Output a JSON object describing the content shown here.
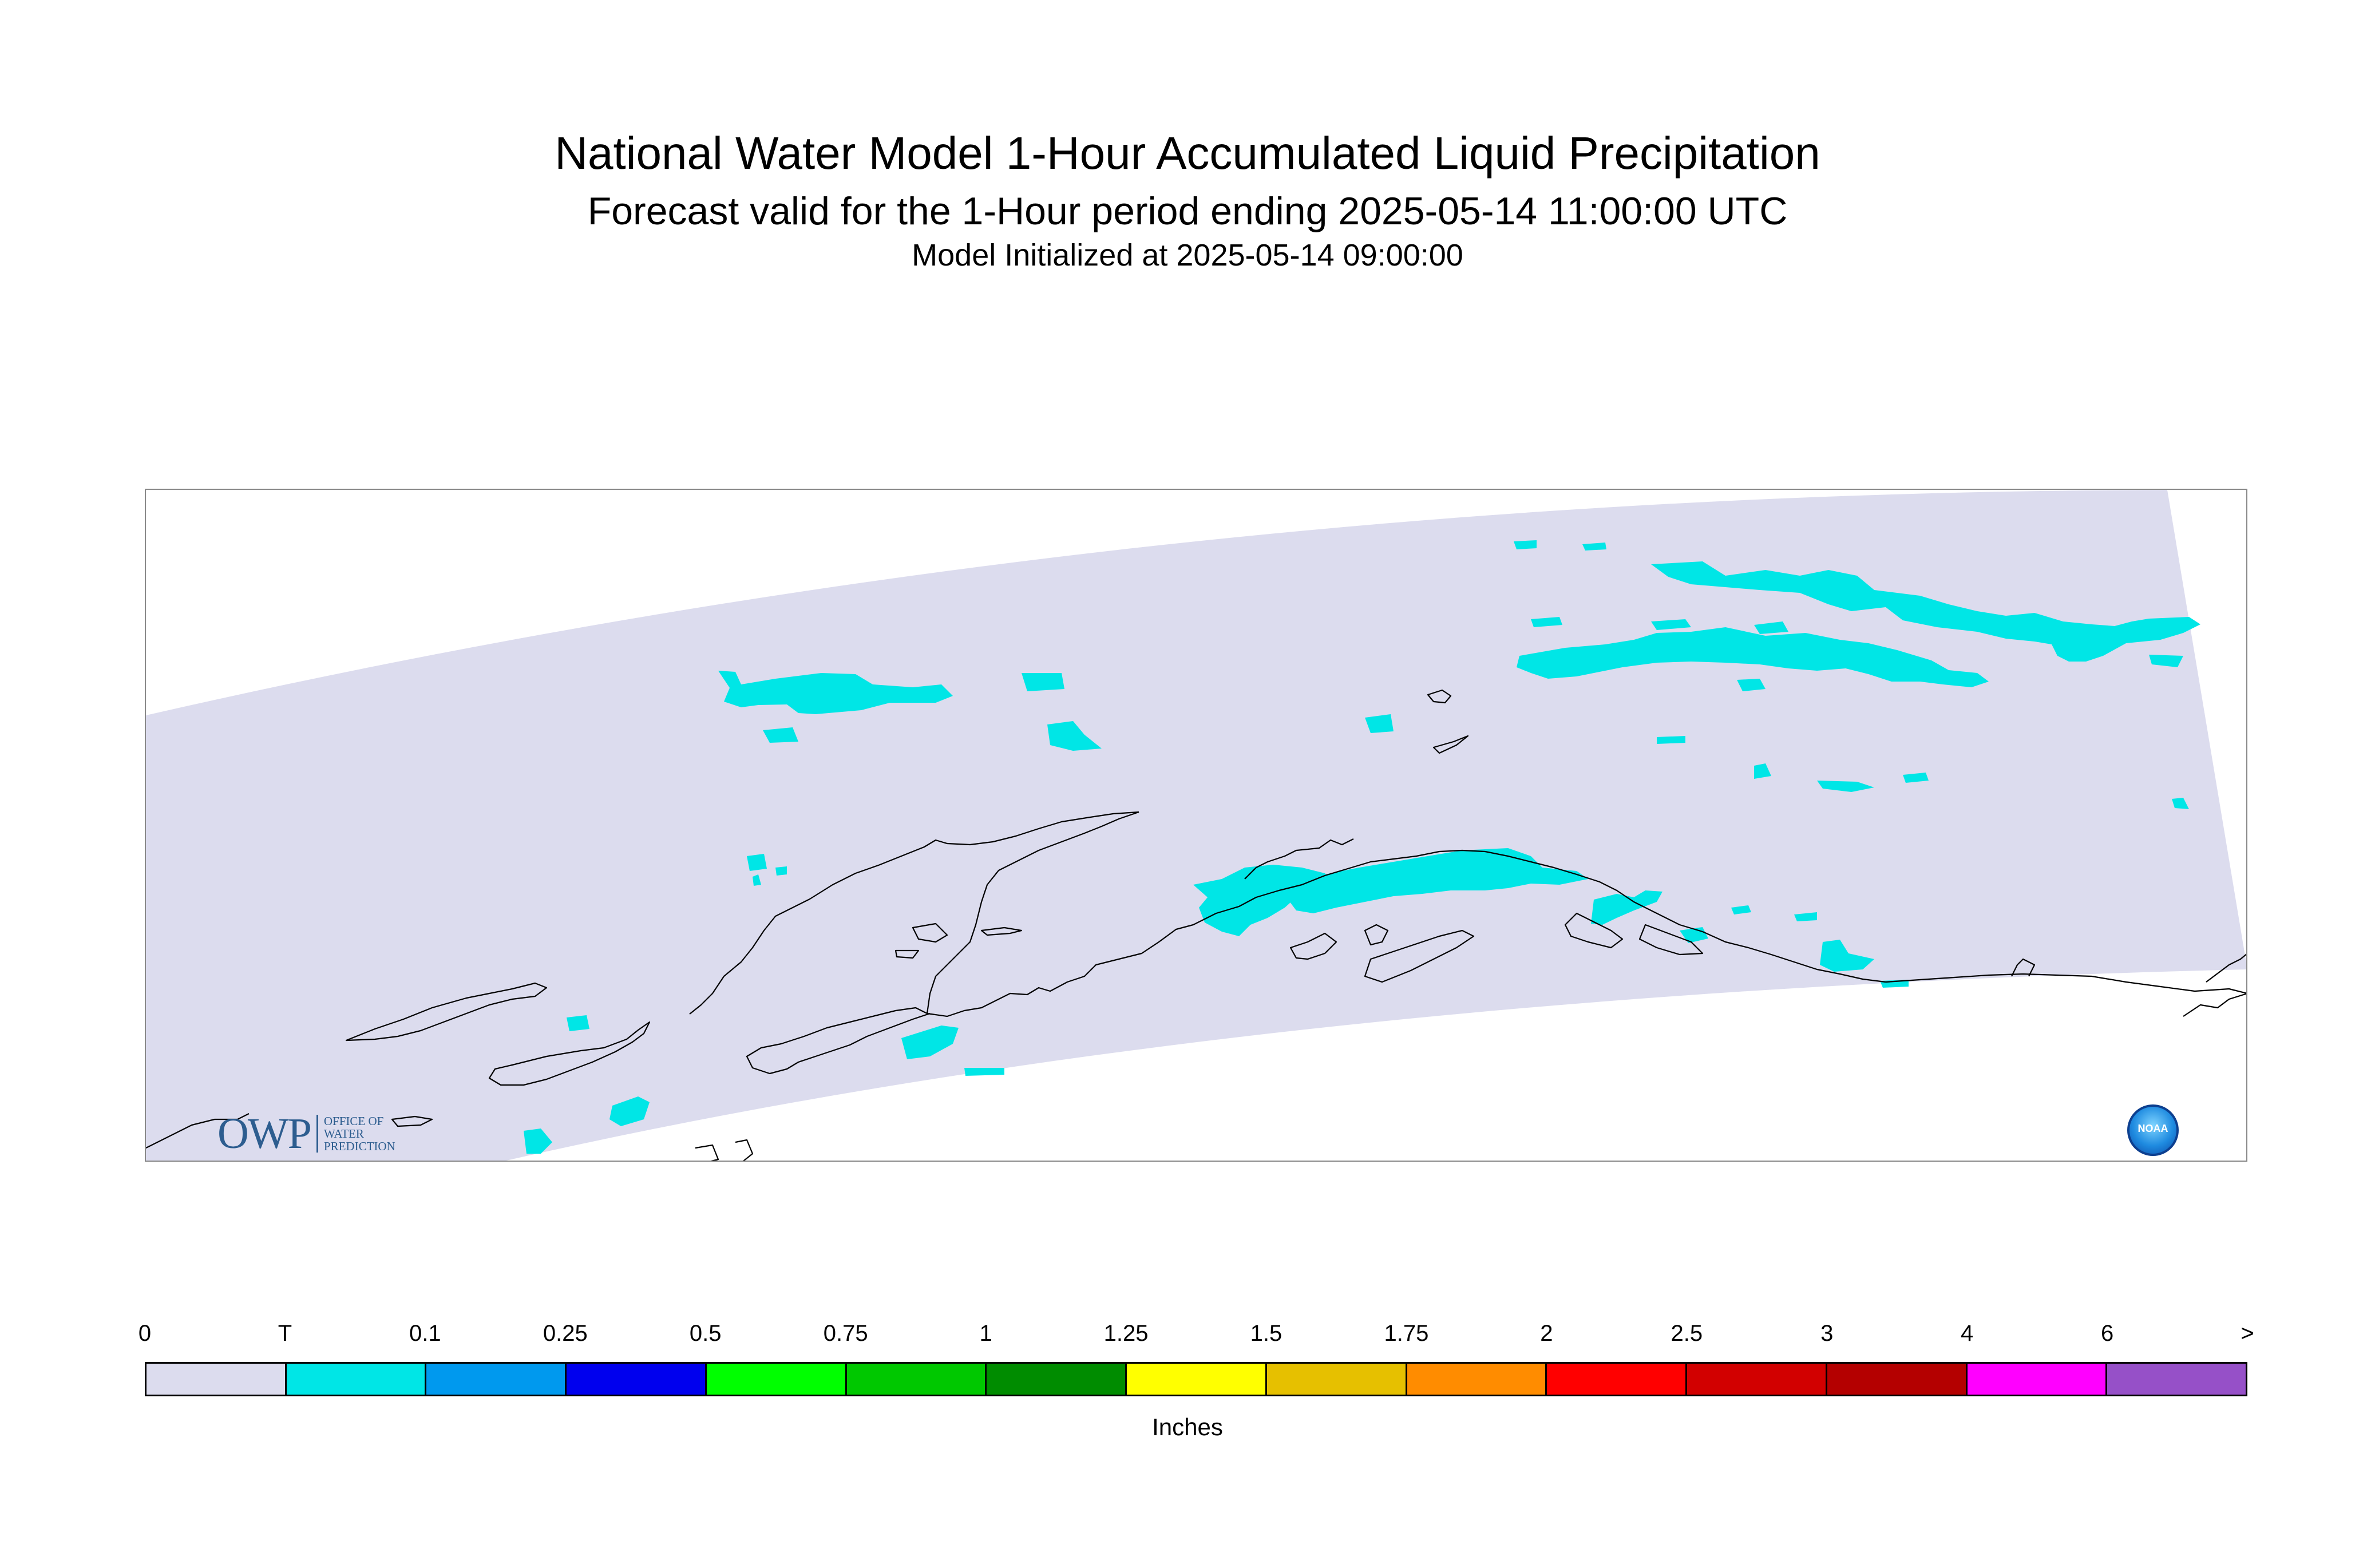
{
  "title": "National Water Model 1-Hour Accumulated Liquid Precipitation",
  "subtitle": "Forecast valid for the 1-Hour period ending 2025-05-14 11:00:00 UTC",
  "init_line": "Model Initialized at 2025-05-14 09:00:00",
  "map": {
    "region": "Alaska",
    "domain_fill_color": "#dcdcee",
    "precip_color": "#00e6e6",
    "coastline_color": "#000000"
  },
  "logos": {
    "owp": {
      "letters": "OWP",
      "line1": "Office of",
      "line2": "Water",
      "line3": "Prediction"
    },
    "noaa": {
      "text": "NOAA"
    }
  },
  "colorbar": {
    "tick_labels": [
      "0",
      "T",
      "0.1",
      "0.25",
      "0.5",
      "0.75",
      "1",
      "1.25",
      "1.5",
      "1.75",
      "2",
      "2.5",
      "3",
      "4",
      "6",
      ">"
    ],
    "colors": [
      "#dcdcee",
      "#00e6e6",
      "#0099ee",
      "#0000ee",
      "#00ff00",
      "#00c800",
      "#008c00",
      "#ffff00",
      "#e6c000",
      "#ff8c00",
      "#ff0000",
      "#d20000",
      "#b40000",
      "#ff00ff",
      "#9650c8"
    ],
    "units": "Inches"
  }
}
